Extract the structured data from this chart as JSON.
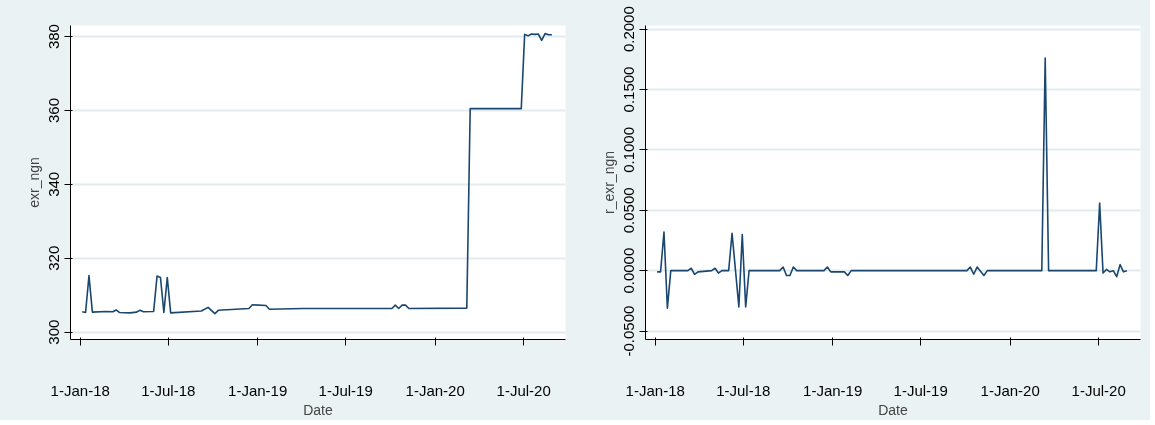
{
  "chart_data": [
    {
      "type": "line",
      "xlabel": "Date",
      "ylabel": "exr_ngn",
      "grid": "y",
      "line_style": "solid",
      "marker": "none",
      "xlim": [
        "2017-12-12",
        "2020-09-25"
      ],
      "ylim": [
        298,
        383
      ],
      "xticks": [
        {
          "value": "2018-01-01",
          "label": "1-Jan-18"
        },
        {
          "value": "2018-07-01",
          "label": "1-Jul-18"
        },
        {
          "value": "2019-01-01",
          "label": "1-Jan-19"
        },
        {
          "value": "2019-07-01",
          "label": "1-Jul-19"
        },
        {
          "value": "2020-01-01",
          "label": "1-Jan-20"
        },
        {
          "value": "2020-07-01",
          "label": "1-Jul-20"
        }
      ],
      "yticks": [
        300,
        320,
        340,
        360,
        380
      ],
      "series": [
        {
          "color": "#1a476f",
          "x": [
            "2018-01-05",
            "2018-01-12",
            "2018-01-19",
            "2018-01-26",
            "2018-02-23",
            "2018-03-09",
            "2018-03-16",
            "2018-03-23",
            "2018-04-13",
            "2018-04-27",
            "2018-05-04",
            "2018-05-11",
            "2018-06-01",
            "2018-06-08",
            "2018-06-15",
            "2018-06-22",
            "2018-06-29",
            "2018-07-06",
            "2018-09-07",
            "2018-09-21",
            "2018-10-05",
            "2018-10-12",
            "2018-12-14",
            "2018-12-21",
            "2019-01-18",
            "2019-01-25",
            "2019-04-05",
            "2019-07-05",
            "2019-10-04",
            "2019-10-11",
            "2019-10-18",
            "2019-10-25",
            "2019-11-01",
            "2019-11-08",
            "2020-03-06",
            "2020-03-13",
            "2020-06-26",
            "2020-07-03",
            "2020-07-10",
            "2020-07-17",
            "2020-07-24",
            "2020-07-31",
            "2020-08-07",
            "2020-08-14",
            "2020-08-21",
            "2020-08-28"
          ],
          "values": [
            305.5,
            305.3,
            315.3,
            305.4,
            305.6,
            305.5,
            306.0,
            305.3,
            305.2,
            305.4,
            305.9,
            305.5,
            305.6,
            315.2,
            314.8,
            305.3,
            314.8,
            305.2,
            305.7,
            306.7,
            305.0,
            305.9,
            306.4,
            307.4,
            307.2,
            306.2,
            306.4,
            306.4,
            306.4,
            307.3,
            306.4,
            307.3,
            307.3,
            306.4,
            306.5,
            360.5,
            360.5,
            380.6,
            380.2,
            380.7,
            380.6,
            380.7,
            379.0,
            380.8,
            380.5,
            380.5
          ]
        }
      ]
    },
    {
      "type": "line",
      "xlabel": "Date",
      "ylabel": "r_exr_ngn",
      "grid": "y",
      "line_style": "solid",
      "marker": "none",
      "xlim": [
        "2017-12-12",
        "2020-09-25"
      ],
      "ylim": [
        -0.057,
        0.203
      ],
      "xticks": [
        {
          "value": "2018-01-01",
          "label": "1-Jan-18"
        },
        {
          "value": "2018-07-01",
          "label": "1-Jul-18"
        },
        {
          "value": "2019-01-01",
          "label": "1-Jan-19"
        },
        {
          "value": "2019-07-01",
          "label": "1-Jul-19"
        },
        {
          "value": "2020-01-01",
          "label": "1-Jan-20"
        },
        {
          "value": "2020-07-01",
          "label": "1-Jul-20"
        }
      ],
      "yticks": [
        {
          "value": -0.05,
          "label": "-0.0500"
        },
        {
          "value": 0,
          "label": "0.0000"
        },
        {
          "value": 0.05,
          "label": "0.0500"
        },
        {
          "value": 0.1,
          "label": "0.1000"
        },
        {
          "value": 0.15,
          "label": "0.1500"
        },
        {
          "value": 0.2,
          "label": "0.2000"
        }
      ],
      "series": [
        {
          "color": "#1a476f",
          "x": [
            "2018-01-05",
            "2018-01-12",
            "2018-01-19",
            "2018-01-26",
            "2018-02-02",
            "2018-03-09",
            "2018-03-16",
            "2018-03-23",
            "2018-03-30",
            "2018-04-27",
            "2018-05-04",
            "2018-05-11",
            "2018-05-18",
            "2018-06-01",
            "2018-06-08",
            "2018-06-22",
            "2018-06-29",
            "2018-07-06",
            "2018-07-13",
            "2018-09-14",
            "2018-09-21",
            "2018-09-28",
            "2018-10-05",
            "2018-10-12",
            "2018-10-19",
            "2018-12-14",
            "2018-12-21",
            "2018-12-28",
            "2019-01-25",
            "2019-02-01",
            "2019-02-08",
            "2019-10-04",
            "2019-10-11",
            "2019-10-18",
            "2019-10-25",
            "2019-11-08",
            "2019-11-15",
            "2020-03-06",
            "2020-03-13",
            "2020-03-20",
            "2020-06-26",
            "2020-07-03",
            "2020-07-10",
            "2020-07-17",
            "2020-07-24",
            "2020-07-31",
            "2020-08-07",
            "2020-08-14",
            "2020-08-21",
            "2020-08-28"
          ],
          "values": [
            -0.001,
            -0.001,
            0.032,
            -0.031,
            0.0,
            0.0,
            0.002,
            -0.003,
            -0.001,
            0.0,
            0.002,
            -0.002,
            0.0,
            0.0,
            0.031,
            -0.03,
            0.03,
            -0.03,
            0.0,
            0.0,
            0.003,
            -0.004,
            -0.004,
            0.003,
            0.0,
            0.0,
            0.003,
            -0.001,
            -0.001,
            -0.004,
            0.0,
            0.0,
            0.003,
            -0.003,
            0.003,
            -0.004,
            0.0,
            0.0,
            0.176,
            0.0,
            0.0,
            0.056,
            -0.002,
            0.001,
            -0.001,
            0.0,
            -0.005,
            0.005,
            -0.001,
            0.0
          ]
        }
      ]
    }
  ]
}
